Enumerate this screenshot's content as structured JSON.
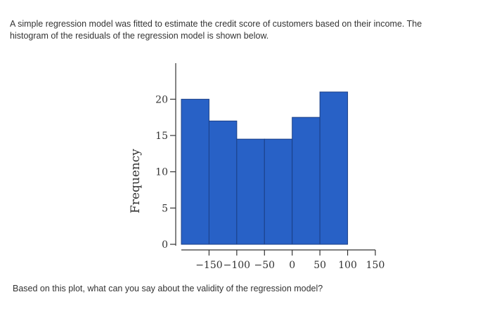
{
  "problem": {
    "intro": "A simple regression model was fitted to estimate the credit score of customers based on their income. The histogram of the residuals of the regression model is shown below.",
    "question": "Based on this plot, what can you say about the validity of the regression model?"
  },
  "colors": {
    "bar": "#2861c6",
    "bar_edge": "#1b3f86",
    "axis": "#333333",
    "text": "#333333"
  },
  "chart_data": {
    "type": "bar",
    "title": "",
    "xlabel": "",
    "ylabel": "Frequency",
    "bins": [
      {
        "from": -200,
        "to": -150,
        "value": 20
      },
      {
        "from": -150,
        "to": -100,
        "value": 17
      },
      {
        "from": -100,
        "to": -50,
        "value": 14.5
      },
      {
        "from": -50,
        "to": 0,
        "value": 14.5
      },
      {
        "from": 0,
        "to": 50,
        "value": 17.5
      },
      {
        "from": 50,
        "to": 100,
        "value": 21
      }
    ],
    "x_ticks": [
      -150,
      -100,
      -50,
      0,
      50,
      100,
      150
    ],
    "x_tick_labels": [
      "−150",
      "−100",
      "−50",
      "0",
      "50",
      "100",
      "150"
    ],
    "y_ticks": [
      0,
      5,
      10,
      15,
      20
    ],
    "y_tick_labels": [
      "0",
      "5",
      "10",
      "15",
      "20"
    ],
    "xlim": [
      -200,
      150
    ],
    "ylim": [
      0,
      24
    ],
    "grid": false
  }
}
